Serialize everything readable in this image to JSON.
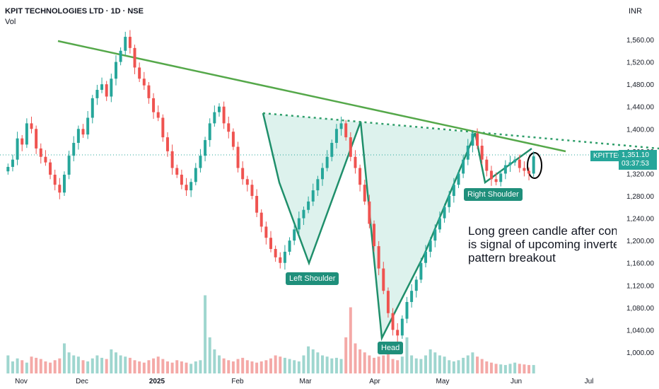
{
  "header": {
    "title": "KPIT TECHNOLOGIES LTD · 1D · NSE",
    "vol_label": "Vol",
    "currency": "INR"
  },
  "last_price": {
    "ticker": "KPITTECH",
    "price": "1,351.10",
    "countdown": "03:37:53"
  },
  "annotations": {
    "left_shoulder": "Left Shoulder",
    "head": "Head",
    "right_shoulder": "Right Shoulder",
    "note_lines": [
      "Long green candle after consolidation",
      "is signal of upcoming inverted H&S",
      "pattern breakout"
    ]
  },
  "colors": {
    "up": "#26a69a",
    "down": "#ef5350",
    "trend": "#55a84a",
    "pattern_fill": "#d7f0ea",
    "pattern_line": "#1f8f6b"
  },
  "chart_data": {
    "type": "candlestick",
    "y_ticks": [
      "1,560.00",
      "1,520.00",
      "1,480.00",
      "1,440.00",
      "1,400.00",
      "1,360.00",
      "1,320.00",
      "1,280.00",
      "1,240.00",
      "1,200.00",
      "1,160.00",
      "1,120.00",
      "1,080.00",
      "1,040.00",
      "1,000.00"
    ],
    "y_tick_values": [
      1560,
      1520,
      1480,
      1440,
      1400,
      1360,
      1320,
      1280,
      1240,
      1200,
      1160,
      1120,
      1080,
      1040,
      1000
    ],
    "x_ticks": [
      "Nov",
      "Dec",
      "2025",
      "Feb",
      "Mar",
      "Apr",
      "May",
      "Jun",
      "Jul"
    ],
    "series": [
      {
        "name": "close",
        "values": [
          1332,
          1345,
          1383,
          1372,
          1410,
          1400,
          1365,
          1350,
          1340,
          1318,
          1300,
          1286,
          1318,
          1352,
          1375,
          1400,
          1390,
          1420,
          1455,
          1470,
          1480,
          1458,
          1490,
          1520,
          1540,
          1565,
          1545,
          1510,
          1490,
          1478,
          1455,
          1430,
          1420,
          1385,
          1360,
          1330,
          1318,
          1300,
          1290,
          1305,
          1330,
          1352,
          1380,
          1410,
          1430,
          1440,
          1410,
          1395,
          1368,
          1330,
          1310,
          1300,
          1280,
          1250,
          1225,
          1205,
          1185,
          1170,
          1160,
          1180,
          1200,
          1220,
          1240,
          1255,
          1270,
          1290,
          1310,
          1330,
          1350,
          1375,
          1400,
          1410,
          1385,
          1350,
          1330,
          1300,
          1270,
          1230,
          1190,
          1150,
          1110,
          1070,
          1040,
          1030,
          1060,
          1090,
          1110,
          1130,
          1160,
          1180,
          1200,
          1220,
          1240,
          1260,
          1280,
          1300,
          1320,
          1345,
          1370,
          1392,
          1370,
          1345,
          1325,
          1310,
          1305,
          1320,
          1335,
          1340,
          1345,
          1330,
          1325,
          1320,
          1351
        ]
      },
      {
        "name": "Vol",
        "values": [
          30,
          20,
          25,
          22,
          18,
          28,
          26,
          24,
          20,
          18,
          22,
          25,
          50,
          35,
          30,
          28,
          22,
          20,
          25,
          30,
          26,
          24,
          40,
          35,
          30,
          28,
          26,
          22,
          20,
          18,
          22,
          25,
          28,
          24,
          20,
          18,
          22,
          20,
          18,
          16,
          20,
          22,
          130,
          60,
          40,
          30,
          25,
          22,
          20,
          24,
          26,
          22,
          20,
          18,
          20,
          22,
          25,
          30,
          28,
          26,
          24,
          22,
          20,
          30,
          45,
          40,
          35,
          30,
          28,
          25,
          26,
          24,
          60,
          110,
          50,
          40,
          35,
          30,
          26,
          28,
          30,
          32,
          24,
          22,
          28,
          60,
          30,
          25,
          24,
          30,
          40,
          35,
          30,
          28,
          22,
          20,
          22,
          26,
          30,
          35,
          28,
          24,
          20,
          18,
          16,
          15,
          14,
          16,
          18,
          16,
          15,
          14,
          14
        ]
      }
    ],
    "ylim": [
      1000,
      1560
    ],
    "grid": false,
    "legend": "none"
  }
}
